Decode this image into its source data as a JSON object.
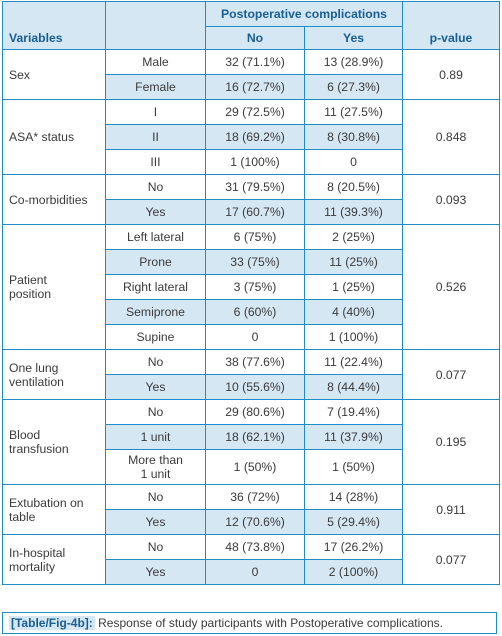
{
  "header": {
    "variables": "Variables",
    "group": "Postoperative complications",
    "no": "No",
    "yes": "Yes",
    "pvalue": "p-value"
  },
  "rows": {
    "sex": {
      "label": "Sex",
      "p": "0.89",
      "cats": [
        {
          "cat": "Male",
          "no": "32 (71.1%)",
          "yes": "13 (28.9%)"
        },
        {
          "cat": "Female",
          "no": "16 (72.7%)",
          "yes": "6 (27.3%)"
        }
      ]
    },
    "asa": {
      "label": "ASA* status",
      "p": "0.848",
      "cats": [
        {
          "cat": "I",
          "no": "29 (72.5%)",
          "yes": "11 (27.5%)"
        },
        {
          "cat": "II",
          "no": "18 (69.2%)",
          "yes": "8 (30.8%)"
        },
        {
          "cat": "III",
          "no": "1 (100%)",
          "yes": "0"
        }
      ]
    },
    "comorb": {
      "label": "Co-morbidities",
      "p": "0.093",
      "cats": [
        {
          "cat": "No",
          "no": "31 (79.5%)",
          "yes": "8 (20.5%)"
        },
        {
          "cat": "Yes",
          "no": "17 (60.7%)",
          "yes": "11 (39.3%)"
        }
      ]
    },
    "position": {
      "label1": "Patient",
      "label2": "position",
      "p": "0.526",
      "cats": [
        {
          "cat": "Left lateral",
          "no": "6 (75%)",
          "yes": "2 (25%)"
        },
        {
          "cat": "Prone",
          "no": "33 (75%)",
          "yes": "11 (25%)"
        },
        {
          "cat": "Right lateral",
          "no": "3 (75%)",
          "yes": "1 (25%)"
        },
        {
          "cat": "Semiprone",
          "no": "6 (60%)",
          "yes": "4 (40%)"
        },
        {
          "cat": "Supine",
          "no": "0",
          "yes": "1 (100%)"
        }
      ]
    },
    "olv": {
      "label1": "One lung",
      "label2": "ventilation",
      "p": "0.077",
      "cats": [
        {
          "cat": "No",
          "no": "38 (77.6%)",
          "yes": "11 (22.4%)"
        },
        {
          "cat": "Yes",
          "no": "10 (55.6%)",
          "yes": "8 (44.4%)"
        }
      ]
    },
    "blood": {
      "label1": "Blood",
      "label2": "transfusion",
      "p": "0.195",
      "cats": [
        {
          "cat": "No",
          "no": "29 (80.6%)",
          "yes": "7 (19.4%)"
        },
        {
          "cat": "1 unit",
          "no": "18 (62.1%)",
          "yes": "11 (37.9%)"
        },
        {
          "cat1": "More than",
          "cat2": "1 unit",
          "no": "1 (50%)",
          "yes": "1 (50%)"
        }
      ]
    },
    "extub": {
      "label1": "Extubation on",
      "label2": "table",
      "p": "0.911",
      "cats": [
        {
          "cat": "No",
          "no": "36 (72%)",
          "yes": "14 (28%)"
        },
        {
          "cat": "Yes",
          "no": "12 (70.6%)",
          "yes": "5 (29.4%)"
        }
      ]
    },
    "mort": {
      "label1": "In-hospital",
      "label2": "mortality",
      "p": "0.077",
      "cats": [
        {
          "cat": "No",
          "no": "48 (73.8%)",
          "yes": "17 (26.2%)"
        },
        {
          "cat": "Yes",
          "no": "0",
          "yes": "2 (100%)"
        }
      ]
    }
  },
  "caption": {
    "tag": "[Table/Fig-4b]:",
    "text": "Response of study participants with Postoperative complications."
  },
  "colors": {
    "border": "#1f8cc8",
    "header_bg": "#d6e7f4",
    "header_text": "#175f93"
  }
}
